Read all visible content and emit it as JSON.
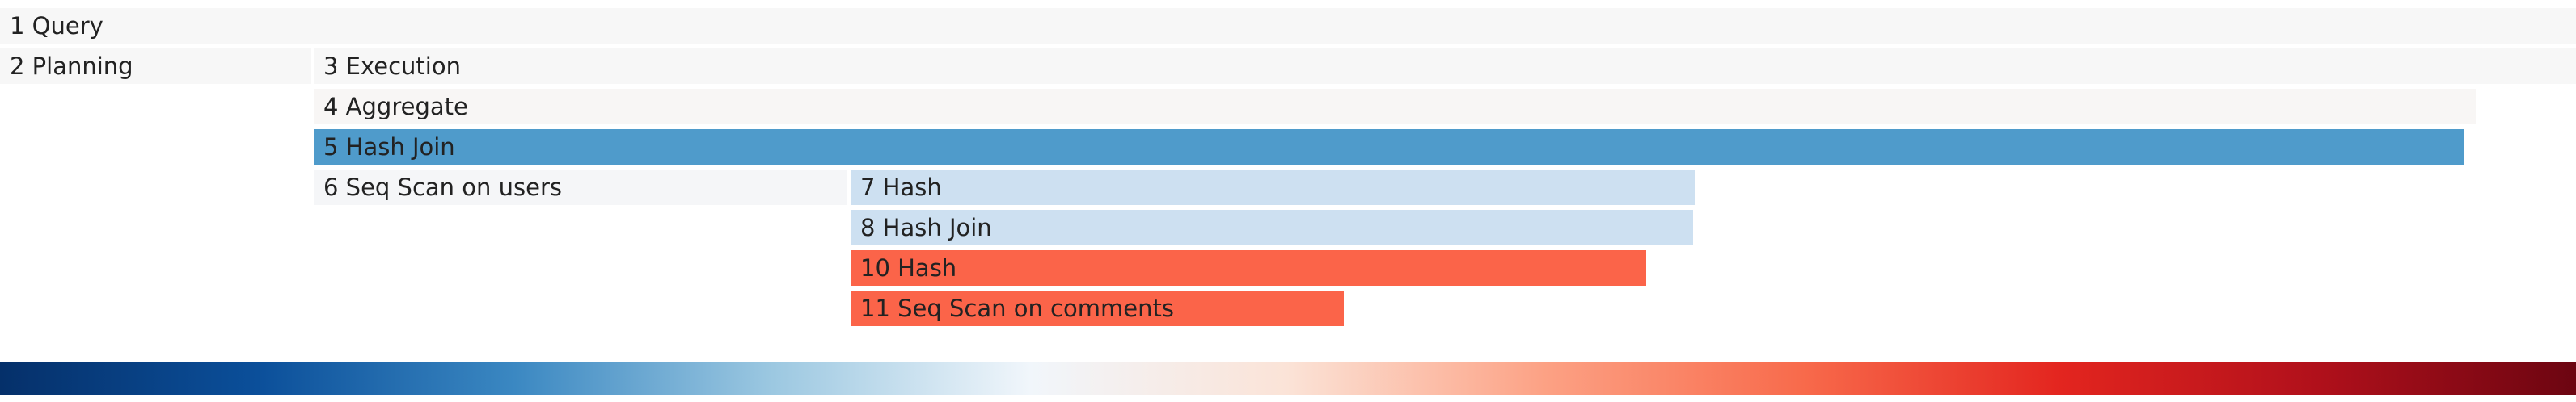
{
  "flamegraph": {
    "nodes": [
      {
        "label": "1 Query",
        "color": "#f7f7f7"
      },
      {
        "label": "2 Planning",
        "color": "#f7f7f7"
      },
      {
        "label": "3 Execution",
        "color": "#f7f7f7"
      },
      {
        "label": "4 Aggregate",
        "color": "#f8f6f5"
      },
      {
        "label": "5 Hash Join",
        "color": "#4f9bcb"
      },
      {
        "label": "6 Seq Scan on users",
        "color": "#f5f6f8"
      },
      {
        "label": "7 Hash",
        "color": "#cde0f1"
      },
      {
        "label": "8 Hash Join",
        "color": "#cde0f1"
      },
      {
        "label": "10 Hash",
        "color": "#fb6449"
      },
      {
        "label": "11 Seq Scan on comments",
        "color": "#fb6449"
      }
    ],
    "legend": {
      "colors": [
        "#05306a",
        "#0b4f9a",
        "#3b88c2",
        "#9cc8e1",
        "#f1f6fb",
        "#fbe3d7",
        "#fca184",
        "#f86a4b",
        "#e3251f",
        "#b0101b",
        "#6c0511"
      ]
    }
  }
}
